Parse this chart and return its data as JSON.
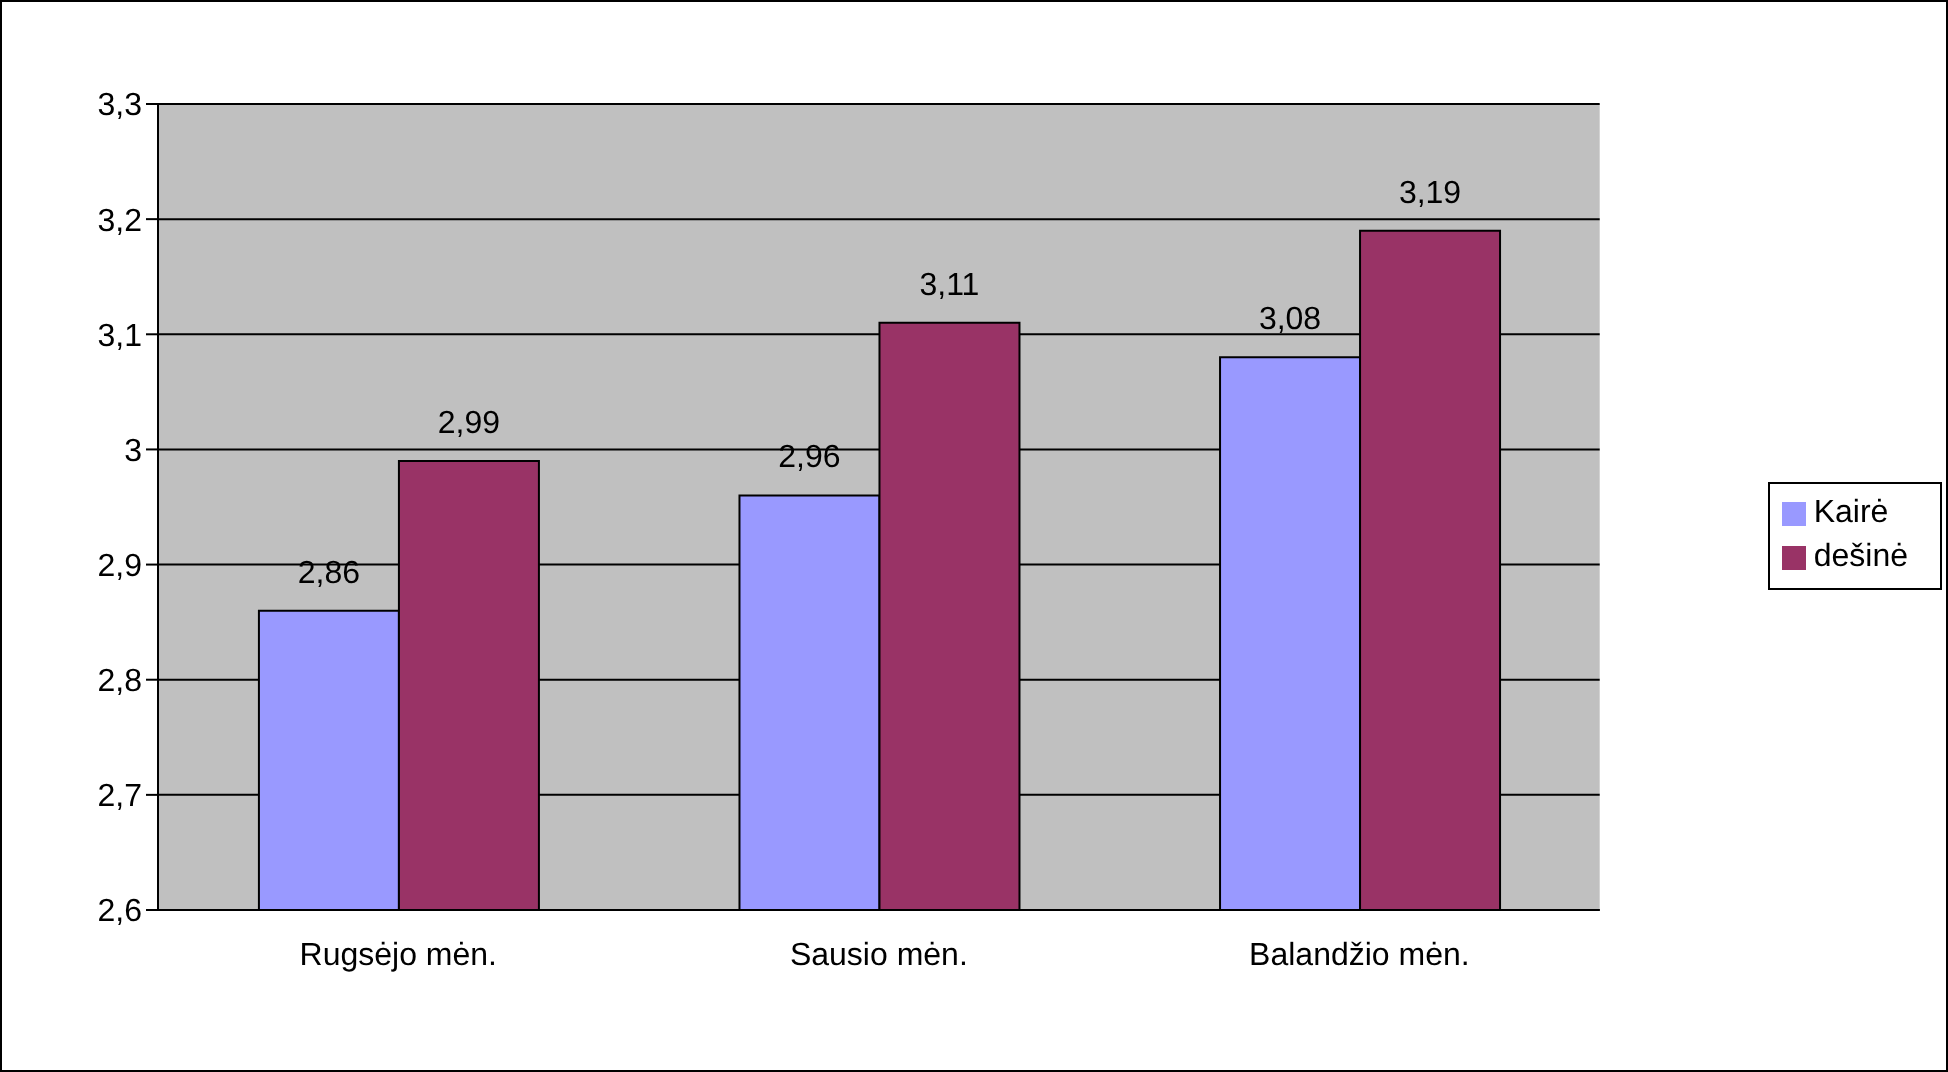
{
  "chart_data": {
    "type": "bar",
    "categories": [
      "Rugsėjo mėn.",
      "Sausio mėn.",
      "Balandžio mėn."
    ],
    "series": [
      {
        "name": "Kairė",
        "color": "#9999ff",
        "values": [
          2.86,
          2.96,
          3.08
        ],
        "value_labels": [
          "2,86",
          "2,96",
          "3,08"
        ]
      },
      {
        "name": "dešinė",
        "color": "#993366",
        "values": [
          2.99,
          3.11,
          3.19
        ],
        "value_labels": [
          "2,99",
          "3,11",
          "3,19"
        ]
      }
    ],
    "ylim": [
      2.6,
      3.3
    ],
    "yticks": [
      {
        "value": 2.6,
        "label": "2,6"
      },
      {
        "value": 2.7,
        "label": "2,7"
      },
      {
        "value": 2.8,
        "label": "2,8"
      },
      {
        "value": 2.9,
        "label": "2,9"
      },
      {
        "value": 3,
        "label": "3"
      },
      {
        "value": 3.1,
        "label": "3,1"
      },
      {
        "value": 3.2,
        "label": "3,2"
      },
      {
        "value": 3.3,
        "label": "3,3"
      }
    ],
    "grid": "y",
    "legend": "right"
  }
}
